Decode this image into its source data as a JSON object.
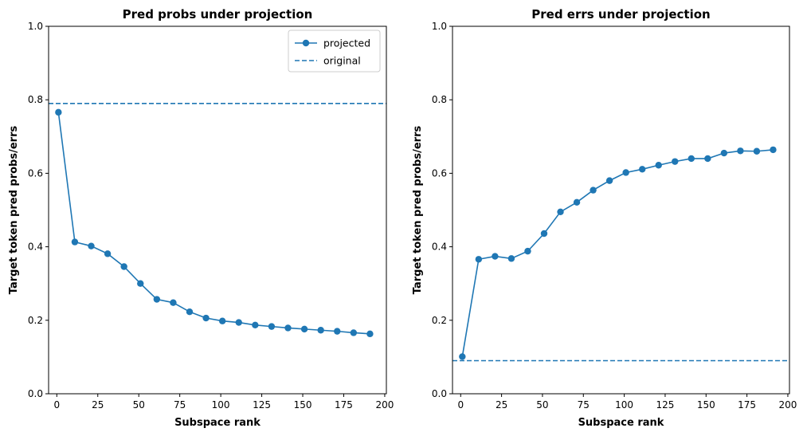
{
  "chart_data": [
    {
      "type": "line",
      "title": "Pred probs under projection",
      "xlabel": "Subspace rank",
      "ylabel": "Target token pred probs/errs",
      "xlim": [
        -5,
        201
      ],
      "ylim": [
        0.0,
        1.0
      ],
      "xticks": [
        "0",
        "25",
        "50",
        "75",
        "100",
        "125",
        "150",
        "175",
        "200"
      ],
      "yticks": [
        "0.0",
        "0.2",
        "0.4",
        "0.6",
        "0.8",
        "1.0"
      ],
      "grid": false,
      "legend": {
        "position": "top-right",
        "entries": [
          "projected",
          "original"
        ]
      },
      "series": [
        {
          "name": "projected",
          "style": "line-markers",
          "color": "#1f77b4",
          "x": [
            1,
            11,
            21,
            31,
            41,
            51,
            61,
            71,
            81,
            91,
            101,
            111,
            121,
            131,
            141,
            151,
            161,
            171,
            181,
            191
          ],
          "y": [
            0.766,
            0.413,
            0.402,
            0.381,
            0.346,
            0.3,
            0.257,
            0.248,
            0.223,
            0.206,
            0.198,
            0.194,
            0.187,
            0.183,
            0.179,
            0.176,
            0.173,
            0.17,
            0.166,
            0.163
          ]
        },
        {
          "name": "original",
          "style": "dashed-hline",
          "color": "#1f77b4",
          "y": 0.79
        }
      ]
    },
    {
      "type": "line",
      "title": "Pred errs under projection",
      "xlabel": "Subspace rank",
      "ylabel": "Target token pred probs/errs",
      "xlim": [
        -5,
        201
      ],
      "ylim": [
        0.0,
        1.0
      ],
      "xticks": [
        "0",
        "25",
        "50",
        "75",
        "100",
        "125",
        "150",
        "175",
        "200"
      ],
      "yticks": [
        "0.0",
        "0.2",
        "0.4",
        "0.6",
        "0.8",
        "1.0"
      ],
      "grid": false,
      "series": [
        {
          "style": "line-markers",
          "color": "#1f77b4",
          "x": [
            1,
            11,
            21,
            31,
            41,
            51,
            61,
            71,
            81,
            91,
            101,
            111,
            121,
            131,
            141,
            151,
            161,
            171,
            181,
            191
          ],
          "y": [
            0.101,
            0.366,
            0.374,
            0.368,
            0.388,
            0.436,
            0.495,
            0.521,
            0.554,
            0.58,
            0.602,
            0.611,
            0.622,
            0.632,
            0.64,
            0.64,
            0.655,
            0.661,
            0.66,
            0.664
          ]
        },
        {
          "style": "dashed-hline",
          "color": "#1f77b4",
          "y": 0.09
        }
      ]
    }
  ]
}
